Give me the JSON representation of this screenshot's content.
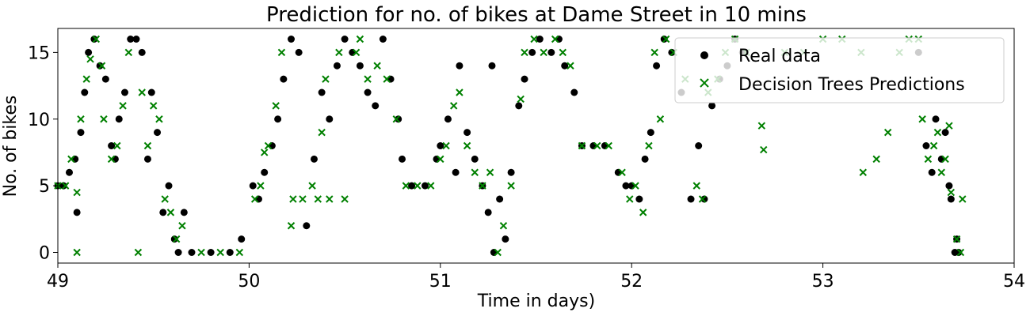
{
  "chart_data": {
    "type": "scatter",
    "title": "Prediction for no. of bikes at Dame Street in 10 mins",
    "xlabel": "Time in days)",
    "ylabel": "No. of bikes",
    "xlim": [
      49,
      54
    ],
    "ylim": [
      -0.8,
      16.8
    ],
    "xticks": [
      49,
      50,
      51,
      52,
      53,
      54
    ],
    "yticks": [
      0,
      5,
      10,
      15
    ],
    "grid": false,
    "legend_position": "top-right",
    "series": [
      {
        "name": "Real data",
        "marker": "circle",
        "color": "#000000",
        "points": [
          [
            49.0,
            5
          ],
          [
            49.03,
            5
          ],
          [
            49.06,
            6
          ],
          [
            49.09,
            7
          ],
          [
            49.1,
            3
          ],
          [
            49.12,
            9
          ],
          [
            49.14,
            12
          ],
          [
            49.16,
            15
          ],
          [
            49.19,
            16
          ],
          [
            49.22,
            14
          ],
          [
            49.25,
            13
          ],
          [
            49.28,
            8
          ],
          [
            49.3,
            7
          ],
          [
            49.32,
            10
          ],
          [
            49.35,
            12
          ],
          [
            49.38,
            16
          ],
          [
            49.41,
            16
          ],
          [
            49.44,
            15
          ],
          [
            49.47,
            7
          ],
          [
            49.49,
            12
          ],
          [
            49.52,
            9
          ],
          [
            49.55,
            3
          ],
          [
            49.58,
            5
          ],
          [
            49.61,
            1
          ],
          [
            49.63,
            0
          ],
          [
            49.66,
            3
          ],
          [
            49.7,
            0
          ],
          [
            49.8,
            0
          ],
          [
            49.9,
            0
          ],
          [
            49.96,
            1
          ],
          [
            50.02,
            5
          ],
          [
            50.05,
            4
          ],
          [
            50.08,
            6
          ],
          [
            50.12,
            8
          ],
          [
            50.15,
            10
          ],
          [
            50.18,
            13
          ],
          [
            50.22,
            16
          ],
          [
            50.26,
            15
          ],
          [
            50.3,
            2
          ],
          [
            50.34,
            7
          ],
          [
            50.38,
            12
          ],
          [
            50.42,
            10
          ],
          [
            50.46,
            14
          ],
          [
            50.5,
            16
          ],
          [
            50.54,
            15
          ],
          [
            50.58,
            14
          ],
          [
            50.62,
            12
          ],
          [
            50.66,
            11
          ],
          [
            50.7,
            16
          ],
          [
            50.74,
            13
          ],
          [
            50.78,
            10
          ],
          [
            50.8,
            7
          ],
          [
            50.85,
            5
          ],
          [
            50.92,
            5
          ],
          [
            50.98,
            7
          ],
          [
            51.0,
            8
          ],
          [
            51.04,
            10
          ],
          [
            51.08,
            6
          ],
          [
            51.1,
            14
          ],
          [
            51.14,
            9
          ],
          [
            51.18,
            7
          ],
          [
            51.22,
            5
          ],
          [
            51.25,
            3
          ],
          [
            51.27,
            14
          ],
          [
            51.28,
            0
          ],
          [
            51.31,
            4
          ],
          [
            51.34,
            1
          ],
          [
            51.37,
            6
          ],
          [
            51.41,
            11
          ],
          [
            51.44,
            13
          ],
          [
            51.48,
            15
          ],
          [
            51.52,
            16
          ],
          [
            51.58,
            15
          ],
          [
            51.62,
            16
          ],
          [
            51.65,
            14
          ],
          [
            51.7,
            12
          ],
          [
            51.74,
            8
          ],
          [
            51.8,
            8
          ],
          [
            51.86,
            8
          ],
          [
            51.93,
            6
          ],
          [
            51.97,
            5
          ],
          [
            52.0,
            5
          ],
          [
            52.04,
            4
          ],
          [
            52.07,
            7
          ],
          [
            52.1,
            9
          ],
          [
            52.13,
            14
          ],
          [
            52.17,
            16
          ],
          [
            52.21,
            15
          ],
          [
            52.26,
            12
          ],
          [
            52.31,
            4
          ],
          [
            52.35,
            8
          ],
          [
            52.38,
            4
          ],
          [
            52.42,
            11
          ],
          [
            52.46,
            13
          ],
          [
            52.5,
            14
          ],
          [
            52.54,
            16
          ],
          [
            52.58,
            15
          ],
          [
            53.5,
            15
          ],
          [
            53.54,
            8
          ],
          [
            53.57,
            6
          ],
          [
            53.59,
            10
          ],
          [
            53.62,
            7
          ],
          [
            53.64,
            9
          ],
          [
            53.66,
            5
          ],
          [
            53.67,
            4
          ],
          [
            53.69,
            0
          ],
          [
            53.7,
            1
          ],
          [
            53.71,
            0
          ]
        ]
      },
      {
        "name": "Decision Trees Predictions",
        "marker": "x",
        "color": "#008000",
        "points": [
          [
            49.0,
            5
          ],
          [
            49.04,
            5
          ],
          [
            49.07,
            7
          ],
          [
            49.1,
            4.5
          ],
          [
            49.1,
            0
          ],
          [
            49.12,
            10
          ],
          [
            49.15,
            13
          ],
          [
            49.17,
            14.5
          ],
          [
            49.2,
            16
          ],
          [
            49.23,
            14
          ],
          [
            49.24,
            10
          ],
          [
            49.28,
            7
          ],
          [
            49.31,
            8
          ],
          [
            49.34,
            11
          ],
          [
            49.37,
            15
          ],
          [
            49.42,
            0
          ],
          [
            49.44,
            12
          ],
          [
            49.47,
            8
          ],
          [
            49.5,
            11
          ],
          [
            49.53,
            10
          ],
          [
            49.56,
            4
          ],
          [
            49.59,
            3
          ],
          [
            49.62,
            1
          ],
          [
            49.65,
            2
          ],
          [
            49.75,
            0
          ],
          [
            49.85,
            0
          ],
          [
            49.95,
            0
          ],
          [
            50.03,
            4
          ],
          [
            50.06,
            5
          ],
          [
            50.08,
            7.5
          ],
          [
            50.1,
            8
          ],
          [
            50.14,
            11
          ],
          [
            50.17,
            15
          ],
          [
            50.22,
            2
          ],
          [
            50.23,
            4
          ],
          [
            50.28,
            4
          ],
          [
            50.33,
            5
          ],
          [
            50.36,
            4
          ],
          [
            50.38,
            9
          ],
          [
            50.4,
            13
          ],
          [
            50.42,
            4
          ],
          [
            50.47,
            15
          ],
          [
            50.5,
            4
          ],
          [
            50.56,
            15
          ],
          [
            50.58,
            16
          ],
          [
            50.62,
            13
          ],
          [
            50.67,
            14
          ],
          [
            50.72,
            13
          ],
          [
            50.77,
            10
          ],
          [
            50.82,
            5
          ],
          [
            50.88,
            5
          ],
          [
            50.95,
            5
          ],
          [
            51.0,
            7
          ],
          [
            51.03,
            8
          ],
          [
            51.07,
            11
          ],
          [
            51.1,
            12
          ],
          [
            51.14,
            8
          ],
          [
            51.18,
            6
          ],
          [
            51.22,
            5
          ],
          [
            51.26,
            6
          ],
          [
            51.3,
            0
          ],
          [
            51.33,
            2
          ],
          [
            51.37,
            5
          ],
          [
            51.42,
            11.5
          ],
          [
            51.44,
            15
          ],
          [
            51.49,
            16
          ],
          [
            51.54,
            15
          ],
          [
            51.6,
            16
          ],
          [
            51.64,
            15
          ],
          [
            51.68,
            14
          ],
          [
            51.74,
            8
          ],
          [
            51.82,
            8
          ],
          [
            51.88,
            8
          ],
          [
            51.95,
            6
          ],
          [
            51.99,
            4
          ],
          [
            52.02,
            5
          ],
          [
            52.06,
            3
          ],
          [
            52.09,
            8
          ],
          [
            52.12,
            15
          ],
          [
            52.15,
            10
          ],
          [
            52.18,
            16
          ],
          [
            52.22,
            15
          ],
          [
            52.28,
            13
          ],
          [
            52.34,
            5
          ],
          [
            52.37,
            4
          ],
          [
            52.4,
            12
          ],
          [
            52.45,
            13
          ],
          [
            52.49,
            15
          ],
          [
            52.54,
            16
          ],
          [
            52.6,
            15
          ],
          [
            52.68,
            9.5
          ],
          [
            52.69,
            7.7
          ],
          [
            52.8,
            15
          ],
          [
            52.9,
            15
          ],
          [
            53.0,
            16
          ],
          [
            53.1,
            16
          ],
          [
            53.2,
            15
          ],
          [
            53.21,
            6
          ],
          [
            53.28,
            7
          ],
          [
            53.34,
            9
          ],
          [
            53.4,
            15
          ],
          [
            53.45,
            16
          ],
          [
            53.5,
            16
          ],
          [
            53.52,
            10
          ],
          [
            53.55,
            7
          ],
          [
            53.58,
            8
          ],
          [
            53.6,
            9
          ],
          [
            53.62,
            6
          ],
          [
            53.64,
            7
          ],
          [
            53.66,
            9.5
          ],
          [
            53.67,
            4.5
          ],
          [
            53.7,
            1
          ],
          [
            53.72,
            0
          ],
          [
            53.73,
            4
          ]
        ]
      }
    ]
  }
}
